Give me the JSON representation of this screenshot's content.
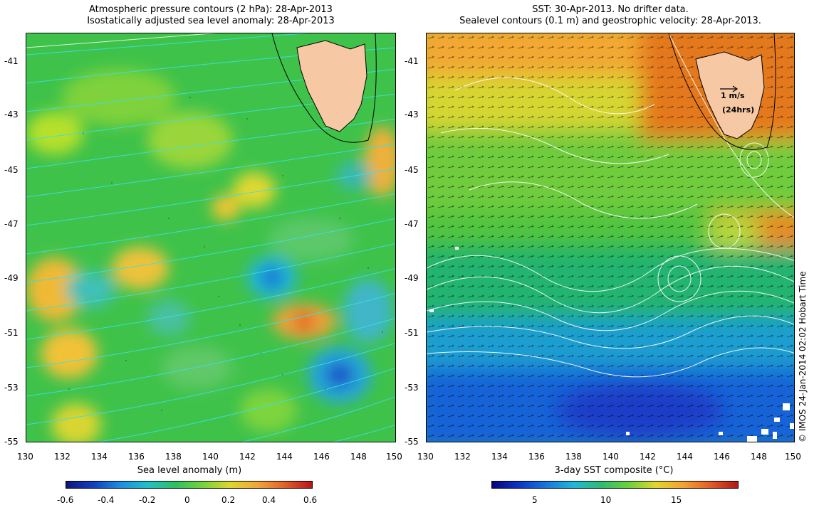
{
  "left_panel": {
    "title_line1": "Atmospheric pressure contours (2 hPa): 28-Apr-2013",
    "title_line2": "Isostatically adjusted sea level anomaly: 28-Apr-2013",
    "x_ticks": [
      "130",
      "132",
      "134",
      "136",
      "138",
      "140",
      "142",
      "144",
      "146",
      "148",
      "150"
    ],
    "y_ticks": [
      "-41",
      "-43",
      "-45",
      "-47",
      "-49",
      "-51",
      "-53",
      "-55"
    ],
    "colorbar_label": "Sea level anomaly (m)",
    "colorbar_ticks": [
      "-0.6",
      "-0.4",
      "-0.2",
      "0",
      "0.2",
      "0.4",
      "0.6"
    ],
    "colors": {
      "low": "#1a3ba0",
      "mid": "#27b86a",
      "high": "#c0221a",
      "contour": "#39e0e8",
      "land": "#f6c9a4"
    }
  },
  "right_panel": {
    "title_line1": "SST: 30-Apr-2013. No drifter data.",
    "title_line2": "Sealevel contours (0.1 m) and geostrophic velocity: 28-Apr-2013.",
    "x_ticks": [
      "130",
      "132",
      "134",
      "136",
      "138",
      "140",
      "142",
      "144",
      "146",
      "148",
      "150"
    ],
    "y_ticks": [
      "-41",
      "-43",
      "-45",
      "-47",
      "-49",
      "-51",
      "-53",
      "-55"
    ],
    "colorbar_label": "3-day SST composite (°C)",
    "colorbar_ticks": [
      "5",
      "10",
      "15"
    ],
    "scale_label": "1 m/s",
    "scale_sub": "(24hrs)",
    "colors": {
      "cold": "#1a5fd0",
      "mid": "#3cc050",
      "warm": "#e26a12",
      "contour": "#ffffff",
      "land": "#f6c9a4"
    }
  },
  "credit": "© IMOS 24-Jan-2014 02:02 Hobart Time"
}
